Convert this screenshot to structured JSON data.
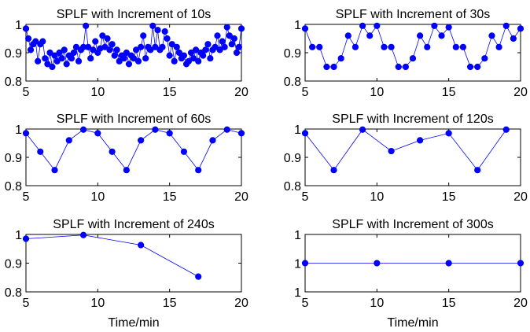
{
  "figure": {
    "xlabel": "Time/min"
  },
  "chart_data": [
    {
      "type": "line",
      "title": "SPLF with Increment of 10s",
      "xlabel": "",
      "xlim": [
        5,
        20
      ],
      "ylim": [
        0.8,
        1.0
      ],
      "xticks": [
        "5",
        "10",
        "15",
        "20"
      ],
      "yticks": [
        "0.8",
        "0.9",
        "1"
      ],
      "color": "#0000ff",
      "x": [
        5.0,
        5.17,
        5.33,
        5.5,
        5.67,
        5.83,
        6.0,
        6.17,
        6.33,
        6.5,
        6.67,
        6.83,
        7.0,
        7.17,
        7.33,
        7.5,
        7.67,
        7.83,
        8.0,
        8.17,
        8.33,
        8.5,
        8.67,
        8.83,
        9.0,
        9.17,
        9.33,
        9.5,
        9.67,
        9.83,
        10.0,
        10.17,
        10.33,
        10.5,
        10.67,
        10.83,
        11.0,
        11.17,
        11.33,
        11.5,
        11.67,
        11.83,
        12.0,
        12.17,
        12.33,
        12.5,
        12.67,
        12.83,
        13.0,
        13.17,
        13.33,
        13.5,
        13.67,
        13.83,
        14.0,
        14.17,
        14.33,
        14.5,
        14.67,
        14.83,
        15.0,
        15.17,
        15.33,
        15.5,
        15.67,
        15.83,
        16.0,
        16.17,
        16.33,
        16.5,
        16.67,
        16.83,
        17.0,
        17.17,
        17.33,
        17.5,
        17.67,
        17.83,
        18.0,
        18.17,
        18.33,
        18.5,
        18.67,
        18.83,
        19.0,
        19.17,
        19.33,
        19.5,
        19.67,
        19.83,
        20.0
      ],
      "y": [
        0.985,
        0.95,
        0.91,
        0.93,
        0.94,
        0.87,
        0.93,
        0.94,
        0.88,
        0.86,
        0.9,
        0.85,
        0.89,
        0.87,
        0.9,
        0.88,
        0.91,
        0.86,
        0.89,
        0.88,
        0.9,
        0.92,
        0.87,
        0.91,
        0.92,
        0.995,
        0.92,
        0.88,
        0.91,
        0.94,
        0.9,
        0.915,
        0.96,
        0.92,
        0.95,
        0.91,
        0.93,
        0.89,
        0.91,
        0.87,
        0.89,
        0.88,
        0.9,
        0.86,
        0.89,
        0.88,
        0.91,
        0.87,
        0.92,
        0.96,
        0.88,
        0.92,
        0.91,
        0.995,
        0.92,
        0.98,
        0.91,
        0.92,
        0.975,
        0.95,
        0.89,
        0.93,
        0.87,
        0.92,
        0.9,
        0.88,
        0.89,
        0.86,
        0.87,
        0.9,
        0.88,
        0.91,
        0.87,
        0.9,
        0.89,
        0.91,
        0.93,
        0.88,
        0.91,
        0.92,
        0.96,
        0.91,
        0.94,
        0.92,
        0.99,
        0.96,
        0.93,
        0.95,
        0.9,
        0.92,
        0.985
      ]
    },
    {
      "type": "line",
      "title": "SPLF with Increment of 30s",
      "xlabel": "",
      "xlim": [
        5,
        20
      ],
      "ylim": [
        0.8,
        1.0
      ],
      "xticks": [
        "5",
        "10",
        "15",
        "20"
      ],
      "yticks": [
        "0.8",
        "0.9",
        "1"
      ],
      "color": "#0000ff",
      "x": [
        5.0,
        5.5,
        6.0,
        6.5,
        7.0,
        7.5,
        8.0,
        8.5,
        9.0,
        9.5,
        10.0,
        10.5,
        11.0,
        11.5,
        12.0,
        12.5,
        13.0,
        13.5,
        14.0,
        14.5,
        15.0,
        15.5,
        16.0,
        16.5,
        17.0,
        17.5,
        18.0,
        18.5,
        19.0,
        19.5,
        20.0
      ],
      "y": [
        0.985,
        0.92,
        0.92,
        0.85,
        0.85,
        0.88,
        0.96,
        0.92,
        0.995,
        0.96,
        0.995,
        0.92,
        0.92,
        0.85,
        0.85,
        0.88,
        0.96,
        0.92,
        0.995,
        0.96,
        0.99,
        0.92,
        0.92,
        0.85,
        0.85,
        0.88,
        0.96,
        0.92,
        0.995,
        0.95,
        0.985
      ]
    },
    {
      "type": "line",
      "title": "SPLF with Increment of 60s",
      "xlabel": "",
      "xlim": [
        5,
        20
      ],
      "ylim": [
        0.8,
        1.0
      ],
      "xticks": [
        "5",
        "10",
        "15",
        "20"
      ],
      "yticks": [
        "0.8",
        "0.9",
        "1"
      ],
      "color": "#0000ff",
      "x": [
        5,
        6,
        7,
        8,
        9,
        10,
        11,
        12,
        13,
        14,
        15,
        16,
        17,
        18,
        19,
        20
      ],
      "y": [
        0.985,
        0.92,
        0.855,
        0.96,
        0.998,
        0.985,
        0.92,
        0.855,
        0.96,
        0.998,
        0.985,
        0.92,
        0.855,
        0.96,
        0.998,
        0.985
      ]
    },
    {
      "type": "line",
      "title": "SPLF with Increment of 120s",
      "xlabel": "",
      "xlim": [
        5,
        20
      ],
      "ylim": [
        0.8,
        1.0
      ],
      "xticks": [
        "5",
        "10",
        "15",
        "20"
      ],
      "yticks": [
        "0.8",
        "0.9",
        "1"
      ],
      "color": "#0000ff",
      "x": [
        5,
        7,
        9,
        11,
        13,
        15,
        17,
        19
      ],
      "y": [
        0.985,
        0.855,
        0.998,
        0.922,
        0.96,
        0.985,
        0.855,
        0.998
      ]
    },
    {
      "type": "line",
      "title": "SPLF with Increment of 240s",
      "xlabel": "Time/min",
      "xlim": [
        5,
        20
      ],
      "ylim": [
        0.8,
        1.0
      ],
      "xticks": [
        "5",
        "10",
        "15",
        "20"
      ],
      "yticks": [
        "0.8",
        "0.9",
        "1"
      ],
      "color": "#0000ff",
      "x": [
        5,
        9,
        13,
        17
      ],
      "y": [
        0.985,
        0.998,
        0.963,
        0.853
      ]
    },
    {
      "type": "line",
      "title": "SPLF with Increment of 300s",
      "xlabel": "Time/min",
      "xlim": [
        5,
        20
      ],
      "ylim": [
        0.9,
        1.1
      ],
      "xticks": [
        "5",
        "10",
        "15",
        "20"
      ],
      "yticks": [
        "1",
        "1",
        "1"
      ],
      "color": "#0000ff",
      "x": [
        5,
        10,
        15,
        20
      ],
      "y": [
        1,
        1,
        1,
        1
      ]
    }
  ]
}
